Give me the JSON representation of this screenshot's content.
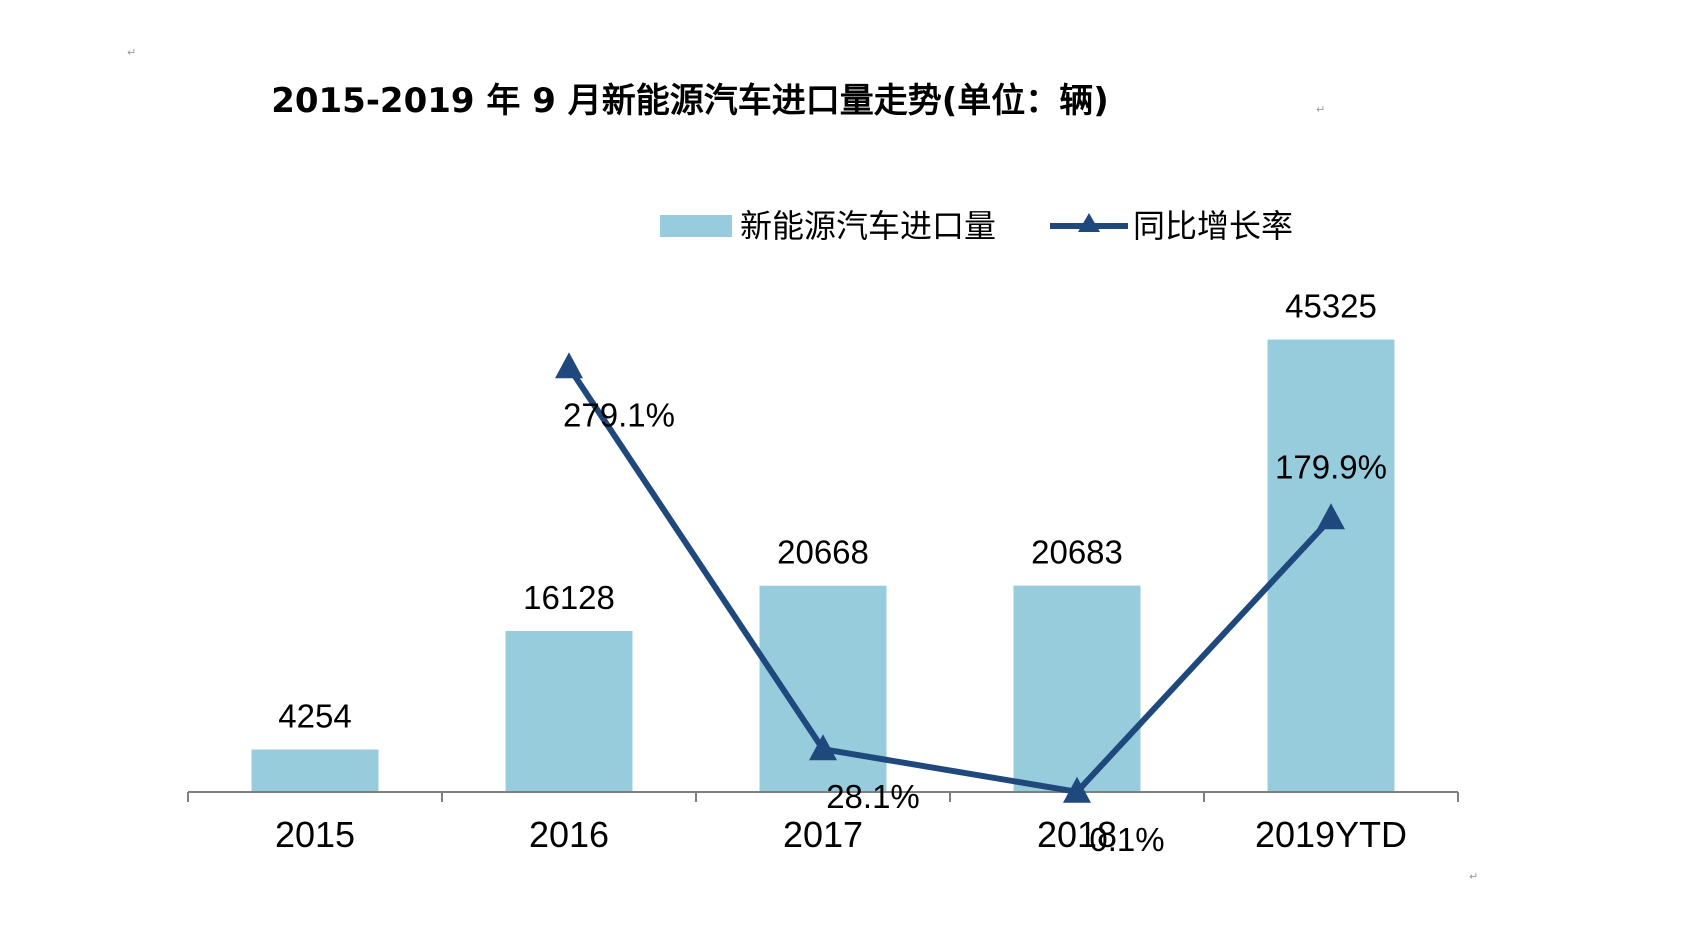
{
  "colors": {
    "bar": "#97CCDD",
    "line": "#1F497D",
    "axis": "#7F7F7F",
    "text": "#000000",
    "background": "#FFFFFF"
  },
  "icons": {
    "paragraph_mark": "↵"
  },
  "chart_data": {
    "type": "bar",
    "title": "2015-2019 年 9 月新能源汽车进口量走势(单位：辆)",
    "categories": [
      "2015",
      "2016",
      "2017",
      "2018",
      "2019YTD"
    ],
    "series": [
      {
        "name": "新能源汽车进口量",
        "type": "bar",
        "axis": "left",
        "values": [
          4254,
          16128,
          20668,
          20683,
          45325
        ],
        "labels": [
          "4254",
          "16128",
          "20668",
          "20683",
          "45325"
        ]
      },
      {
        "name": "同比增长率",
        "type": "line",
        "marker": "triangle",
        "axis": "right",
        "values": [
          null,
          279.1,
          28.1,
          0.1,
          179.9
        ],
        "labels": [
          "",
          "279.1%",
          "28.1%",
          "0.1%",
          "179.9%"
        ]
      }
    ],
    "ylim": [
      0,
      50000
    ],
    "y2lim": [
      0,
      300
    ],
    "legend_position": "top",
    "grid": false,
    "xlabel": "",
    "ylabel": ""
  }
}
